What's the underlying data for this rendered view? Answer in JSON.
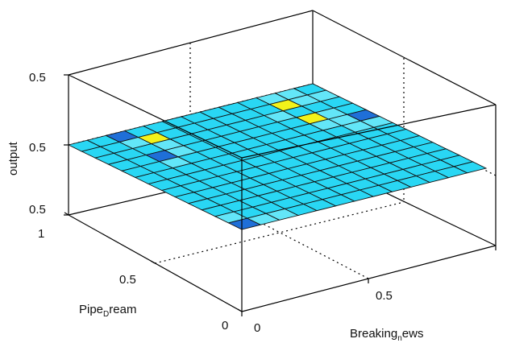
{
  "chart_data": {
    "type": "surface",
    "title": "",
    "xlabel": "Breaking_news",
    "ylabel": "Pipe_Dream",
    "zlabel": "output",
    "xlabel_parts": [
      "Breaking",
      "news"
    ],
    "ylabel_parts": [
      "Pipe",
      "Dream"
    ],
    "x_ticks": [
      "0",
      "0.5"
    ],
    "y_ticks": [
      "0",
      "0.5",
      "1"
    ],
    "z_ticks": [
      "0.5",
      "0.5",
      "0.5"
    ],
    "xlim": [
      0,
      1
    ],
    "ylim": [
      0,
      1
    ],
    "zlim": [
      0.5,
      0.5
    ],
    "grid": true,
    "z_value": 0.5,
    "grid_size": 13,
    "colors": {
      "base": "#29D7F4",
      "light": "#63E6F8",
      "dark": "#1F6FD8",
      "yellow": "#F2F21A",
      "edge": "#111111",
      "box": "#000000"
    },
    "highlight_cells": [
      {
        "i": 0,
        "j": 2,
        "color": "dark"
      },
      {
        "i": 1,
        "j": 2,
        "color": "light"
      },
      {
        "i": 1,
        "j": 3,
        "color": "yellow"
      },
      {
        "i": 2,
        "j": 3,
        "color": "light"
      },
      {
        "i": 3,
        "j": 2,
        "color": "dark"
      },
      {
        "i": 3,
        "j": 3,
        "color": "light"
      },
      {
        "i": 4,
        "j": 2,
        "color": "light"
      },
      {
        "i": 12,
        "j": 0,
        "color": "dark"
      },
      {
        "i": 11,
        "j": 0,
        "color": "light"
      },
      {
        "i": 12,
        "j": 1,
        "color": "light"
      },
      {
        "i": 12,
        "j": 2,
        "color": "light"
      },
      {
        "i": 4,
        "j": 12,
        "color": "dark"
      },
      {
        "i": 5,
        "j": 12,
        "color": "light"
      },
      {
        "i": 4,
        "j": 11,
        "color": "light"
      },
      {
        "i": 5,
        "j": 11,
        "color": "light"
      },
      {
        "i": 0,
        "j": 10,
        "color": "light"
      },
      {
        "i": 1,
        "j": 10,
        "color": "yellow"
      },
      {
        "i": 0,
        "j": 11,
        "color": "light"
      },
      {
        "i": 1,
        "j": 11,
        "color": "light"
      },
      {
        "i": 3,
        "j": 10,
        "color": "yellow"
      },
      {
        "i": 3,
        "j": 11,
        "color": "light"
      },
      {
        "i": 4,
        "j": 10,
        "color": "light"
      },
      {
        "i": 2,
        "j": 9,
        "color": "light"
      },
      {
        "i": 1,
        "j": 12,
        "color": "light"
      }
    ]
  }
}
